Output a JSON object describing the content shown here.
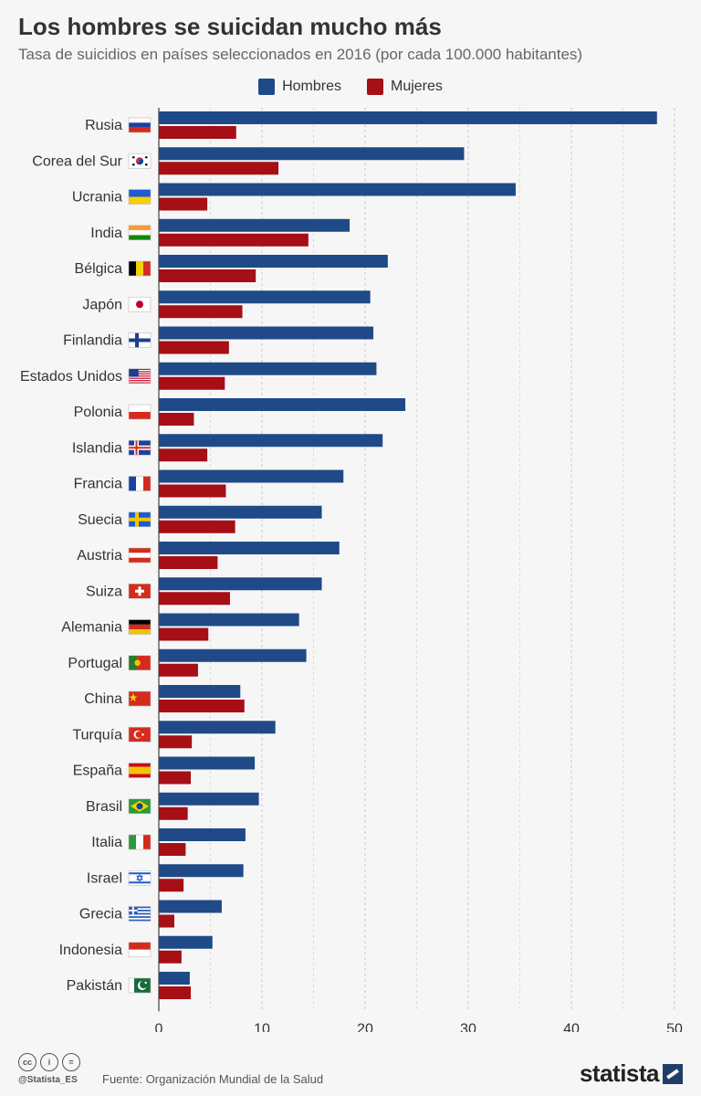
{
  "header": {
    "title": "Los hombres se suicidan mucho más",
    "subtitle": "Tasa de suicidios en países seleccionados en 2016 (por cada 100.000 habitantes)"
  },
  "legend": [
    {
      "label": "Hombres",
      "color": "#1f4a87"
    },
    {
      "label": "Mujeres",
      "color": "#a50f15"
    }
  ],
  "chart_data": {
    "type": "bar",
    "orientation": "horizontal",
    "categories": [
      "Rusia",
      "Corea del Sur",
      "Ucrania",
      "India",
      "Bélgica",
      "Japón",
      "Finlandia",
      "Estados Unidos",
      "Polonia",
      "Islandia",
      "Francia",
      "Suecia",
      "Austria",
      "Suiza",
      "Alemania",
      "Portugal",
      "China",
      "Turquía",
      "España",
      "Brasil",
      "Italia",
      "Israel",
      "Grecia",
      "Indonesia",
      "Pakistán"
    ],
    "series": [
      {
        "name": "Hombres",
        "color": "#1f4a87",
        "values": [
          48.3,
          29.6,
          34.6,
          18.5,
          22.2,
          20.5,
          20.8,
          21.1,
          23.9,
          21.7,
          17.9,
          15.8,
          17.5,
          15.8,
          13.6,
          14.3,
          7.9,
          11.3,
          9.3,
          9.7,
          8.4,
          8.2,
          6.1,
          5.2,
          3.0
        ]
      },
      {
        "name": "Mujeres",
        "color": "#a50f15",
        "values": [
          7.5,
          11.6,
          4.7,
          14.5,
          9.4,
          8.1,
          6.8,
          6.4,
          3.4,
          4.7,
          6.5,
          7.4,
          5.7,
          6.9,
          4.8,
          3.8,
          8.3,
          3.2,
          3.1,
          2.8,
          2.6,
          2.4,
          1.5,
          2.2,
          3.1
        ]
      }
    ],
    "xlim": [
      0,
      50
    ],
    "xticks": [
      0,
      10,
      20,
      30,
      40,
      50
    ],
    "grid": true,
    "legend_position": "top"
  },
  "flags": [
    {
      "colors": [
        "#ffffff",
        "#1c3fa0",
        "#d52b1e"
      ],
      "dir": "h"
    },
    {
      "colors": [
        "#ffffff"
      ],
      "dir": "h",
      "icon": "korea"
    },
    {
      "colors": [
        "#1c5bd0",
        "#f5d000"
      ],
      "dir": "h"
    },
    {
      "colors": [
        "#ff9933",
        "#ffffff",
        "#138808"
      ],
      "dir": "h"
    },
    {
      "colors": [
        "#000000",
        "#f5d000",
        "#d52b1e"
      ],
      "dir": "v"
    },
    {
      "colors": [
        "#ffffff"
      ],
      "dir": "h",
      "icon": "japan"
    },
    {
      "colors": [
        "#ffffff"
      ],
      "dir": "h",
      "icon": "nordic-blue"
    },
    {
      "colors": [
        "#ffffff"
      ],
      "dir": "h",
      "icon": "usa"
    },
    {
      "colors": [
        "#ffffff",
        "#d52b1e"
      ],
      "dir": "h"
    },
    {
      "colors": [
        "#1c3fa0"
      ],
      "dir": "h",
      "icon": "iceland"
    },
    {
      "colors": [
        "#1c3fa0",
        "#ffffff",
        "#d52b1e"
      ],
      "dir": "v"
    },
    {
      "colors": [
        "#1c5bd0"
      ],
      "dir": "h",
      "icon": "sweden"
    },
    {
      "colors": [
        "#d52b1e",
        "#ffffff",
        "#d52b1e"
      ],
      "dir": "h"
    },
    {
      "colors": [
        "#d52b1e"
      ],
      "dir": "h",
      "icon": "swiss"
    },
    {
      "colors": [
        "#000000",
        "#d52b1e",
        "#f5c400"
      ],
      "dir": "h"
    },
    {
      "colors": [
        "#2a7a2a",
        "#d52b1e"
      ],
      "dir": "v",
      "split": 0.4
    },
    {
      "colors": [
        "#d52b1e"
      ],
      "dir": "h",
      "icon": "china"
    },
    {
      "colors": [
        "#d52b1e"
      ],
      "dir": "h",
      "icon": "turkey"
    },
    {
      "colors": [
        "#c60b1e",
        "#f5c400",
        "#c60b1e"
      ],
      "dir": "h",
      "weights": [
        1,
        2,
        1
      ]
    },
    {
      "colors": [
        "#2a9a3a"
      ],
      "dir": "h",
      "icon": "brazil"
    },
    {
      "colors": [
        "#2a9a3a",
        "#ffffff",
        "#d52b1e"
      ],
      "dir": "v"
    },
    {
      "colors": [
        "#ffffff"
      ],
      "dir": "h",
      "icon": "israel"
    },
    {
      "colors": [
        "#2a5cc0"
      ],
      "dir": "h",
      "icon": "greece"
    },
    {
      "colors": [
        "#d52b1e",
        "#ffffff"
      ],
      "dir": "h"
    },
    {
      "colors": [
        "#1a6b3a"
      ],
      "dir": "h",
      "icon": "pakistan"
    }
  ],
  "footer": {
    "cc_icons": [
      "cc",
      "i",
      "="
    ],
    "handle": "@Statista_ES",
    "source": "Fuente: Organización Mundial de la Salud",
    "brand": "statista"
  }
}
